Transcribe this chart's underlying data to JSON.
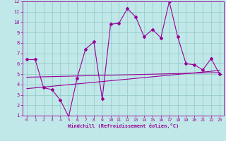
{
  "xlabel": "Windchill (Refroidissement éolien,°C)",
  "bg_color": "#c0e8e8",
  "line_color": "#990099",
  "grid_color": "#99cccc",
  "xlim": [
    -0.5,
    23.5
  ],
  "ylim": [
    1,
    12
  ],
  "xticks": [
    0,
    1,
    2,
    3,
    4,
    5,
    6,
    7,
    8,
    9,
    10,
    11,
    12,
    13,
    14,
    15,
    16,
    17,
    18,
    19,
    20,
    21,
    22,
    23
  ],
  "yticks": [
    1,
    2,
    3,
    4,
    5,
    6,
    7,
    8,
    9,
    10,
    11,
    12
  ],
  "main_x": [
    0,
    1,
    2,
    3,
    4,
    5,
    6,
    7,
    8,
    9,
    10,
    11,
    12,
    13,
    14,
    15,
    16,
    17,
    18,
    19,
    20,
    21,
    22,
    23
  ],
  "main_y": [
    6.4,
    6.4,
    3.7,
    3.5,
    2.5,
    0.9,
    4.6,
    7.4,
    8.1,
    2.6,
    9.8,
    9.9,
    11.3,
    10.5,
    8.6,
    9.3,
    8.5,
    12.0,
    8.6,
    6.0,
    5.9,
    5.4,
    6.5,
    5.0
  ],
  "trend1_x": [
    0,
    23
  ],
  "trend1_y": [
    3.6,
    5.35
  ],
  "trend2_x": [
    0,
    23
  ],
  "trend2_y": [
    4.7,
    5.15
  ]
}
